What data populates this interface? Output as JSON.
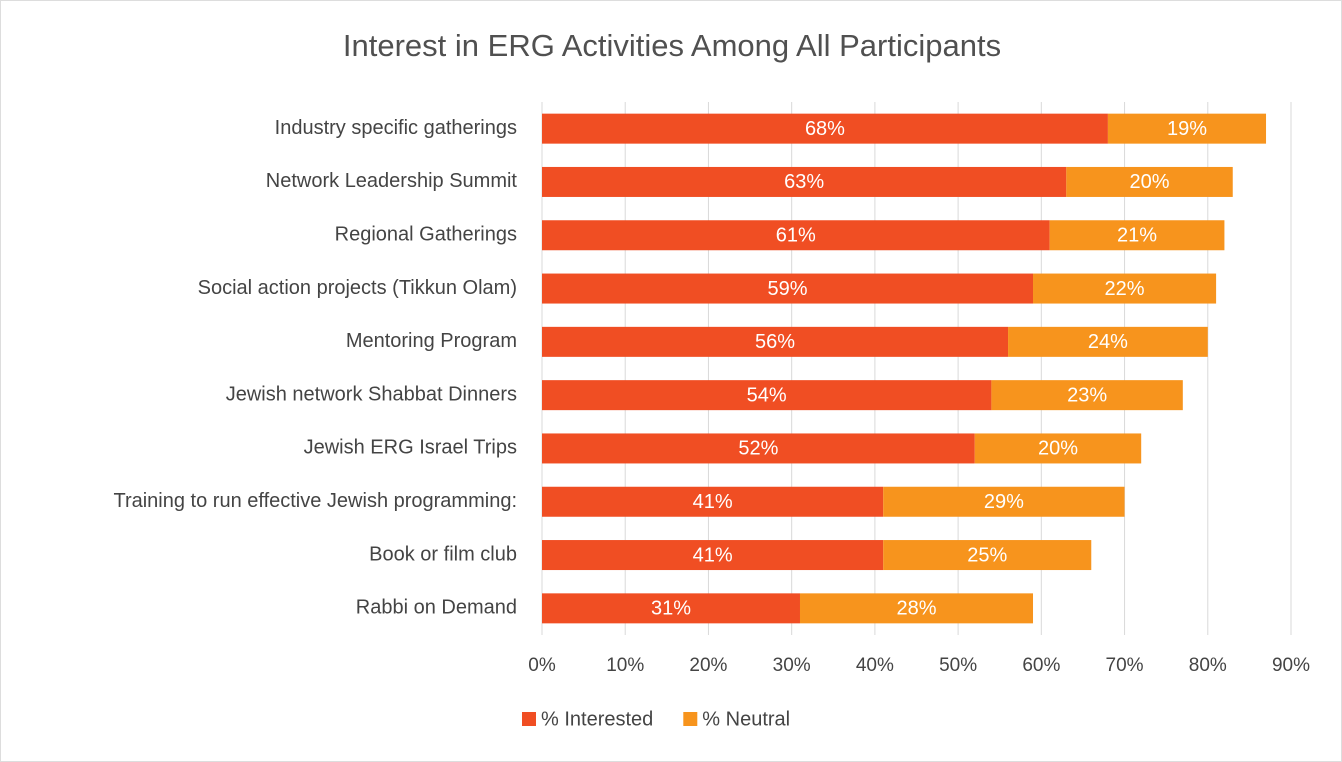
{
  "chart_data": {
    "type": "stacked_bar_horizontal",
    "title": "Interest in ERG Activities Among All Participants",
    "categories": [
      "Industry specific gatherings",
      "Network Leadership Summit",
      "Regional Gatherings",
      "Social action projects (Tikkun Olam)",
      "Mentoring Program",
      "Jewish network Shabbat Dinners",
      "Jewish ERG Israel Trips",
      "Training to run effective Jewish programming:",
      "Book or film club",
      "Rabbi on Demand"
    ],
    "series": [
      {
        "name": "% Interested",
        "color": "#f04e23",
        "values": [
          68,
          63,
          61,
          59,
          56,
          54,
          52,
          41,
          41,
          31
        ],
        "value_labels": [
          "68%",
          "63%",
          "61%",
          "59%",
          "56%",
          "54%",
          "52%",
          "41%",
          "41%",
          "31%"
        ]
      },
      {
        "name": "% Neutral",
        "color": "#f7941d",
        "values": [
          19,
          20,
          21,
          22,
          24,
          23,
          20,
          29,
          25,
          28
        ],
        "value_labels": [
          "19%",
          "20%",
          "21%",
          "22%",
          "24%",
          "23%",
          "20%",
          "29%",
          "25%",
          "28%"
        ]
      }
    ],
    "xlim": [
      0,
      90
    ],
    "xticks": [
      {
        "value": 0,
        "label": "0%"
      },
      {
        "value": 10,
        "label": "10%"
      },
      {
        "value": 20,
        "label": "20%"
      },
      {
        "value": 30,
        "label": "30%"
      },
      {
        "value": 40,
        "label": "40%"
      },
      {
        "value": 50,
        "label": "50%"
      },
      {
        "value": 60,
        "label": "60%"
      },
      {
        "value": 70,
        "label": "70%"
      },
      {
        "value": 80,
        "label": "80%"
      },
      {
        "value": 90,
        "label": "90%"
      }
    ],
    "grid": true,
    "legend": "bottom"
  }
}
